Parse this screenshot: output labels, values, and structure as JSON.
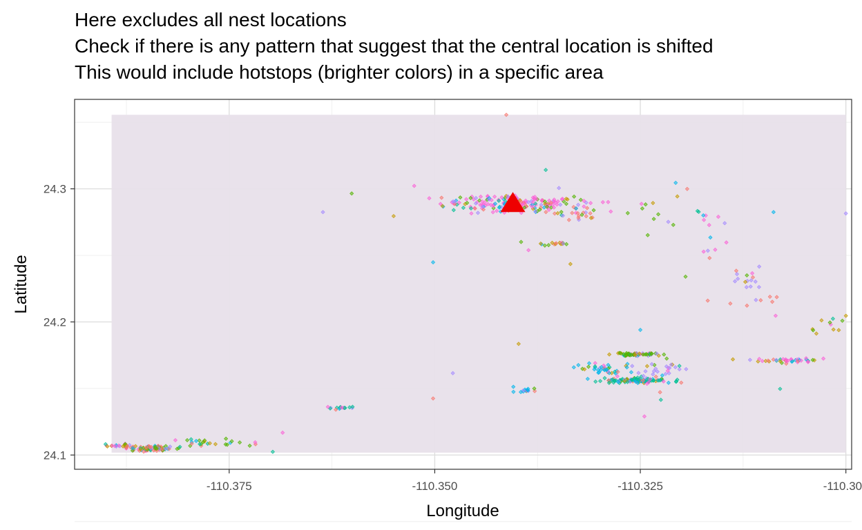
{
  "chart_data": {
    "type": "scatter",
    "title_lines": [
      "Here excludes all nest locations",
      "Check if there is any pattern that suggest that the central location is shifted",
      "This would include hotstops (brighter colors) in a specific area"
    ],
    "xlabel": "Longitude",
    "ylabel": "Latitude",
    "xlim": [
      -110.3938,
      -110.2993
    ],
    "ylim": [
      24.0893,
      24.3672
    ],
    "x_ticks": [
      -110.375,
      -110.35,
      -110.325,
      -110.3
    ],
    "x_tick_labels": [
      "-110.375",
      "-110.350",
      "-110.325",
      "-110.300"
    ],
    "y_ticks": [
      24.1,
      24.2,
      24.3
    ],
    "y_tick_labels": [
      "24.1",
      "24.2",
      "24.3"
    ],
    "grid": true,
    "density_background": {
      "xmin": -110.3893,
      "xmax": -110.3,
      "ymin": 24.1018,
      "ymax": 24.3556,
      "color": "#e8e0ea"
    },
    "central_location": {
      "x": -110.3405,
      "y": 24.2898,
      "marker": "triangle",
      "color": "#ee0000"
    },
    "colors": [
      "#f8766d",
      "#c49a00",
      "#53b400",
      "#00c094",
      "#00b6eb",
      "#a58aff",
      "#fb61d7"
    ],
    "clusters": [
      {
        "x": -110.3403,
        "y": 24.2893,
        "sx": 0.0043,
        "sy": 0.0032,
        "n": 200
      },
      {
        "x": -110.3327,
        "y": 24.2805,
        "sx": 0.0013,
        "sy": 0.0023,
        "n": 20
      },
      {
        "x": -110.3351,
        "y": 24.2583,
        "sx": 0.0011,
        "sy": 0.0005,
        "n": 15
      },
      {
        "x": -110.3255,
        "y": 24.1756,
        "sx": 0.0016,
        "sy": 0.0006,
        "n": 60
      },
      {
        "x": -110.3254,
        "y": 24.1558,
        "sx": 0.002,
        "sy": 0.001,
        "n": 120
      },
      {
        "x": -110.3295,
        "y": 24.1646,
        "sx": 0.0018,
        "sy": 0.0026,
        "n": 40
      },
      {
        "x": -110.3218,
        "y": 24.165,
        "sx": 0.002,
        "sy": 0.0035,
        "n": 25
      },
      {
        "x": -110.3072,
        "y": 24.171,
        "sx": 0.0025,
        "sy": 0.0008,
        "n": 40
      },
      {
        "x": -110.3844,
        "y": 24.105,
        "sx": 0.0016,
        "sy": 0.0011,
        "n": 90
      },
      {
        "x": -110.3885,
        "y": 24.107,
        "sx": 0.001,
        "sy": 0.0007,
        "n": 20
      },
      {
        "x": -110.3775,
        "y": 24.1095,
        "sx": 0.0025,
        "sy": 0.0015,
        "n": 25
      },
      {
        "x": -110.3615,
        "y": 24.1352,
        "sx": 0.0009,
        "sy": 0.0005,
        "n": 15
      },
      {
        "x": -110.3389,
        "y": 24.1488,
        "sx": 0.001,
        "sy": 0.0007,
        "n": 15
      },
      {
        "x": -110.3125,
        "y": 24.233,
        "sx": 0.0012,
        "sy": 0.004,
        "n": 15
      },
      {
        "x": -110.317,
        "y": 24.275,
        "sx": 0.0015,
        "sy": 0.009,
        "n": 12
      },
      {
        "x": -110.31,
        "y": 24.215,
        "sx": 0.002,
        "sy": 0.006,
        "n": 8
      },
      {
        "x": -110.302,
        "y": 24.195,
        "sx": 0.0012,
        "sy": 0.008,
        "n": 10
      },
      {
        "x": -110.324,
        "y": 24.28,
        "sx": 0.0015,
        "sy": 0.005,
        "n": 8
      }
    ],
    "sparse_points": [
      [
        -110.3413,
        24.3556
      ],
      [
        -110.3365,
        24.3142
      ],
      [
        -110.3525,
        24.3022
      ],
      [
        -110.3601,
        24.2965
      ],
      [
        -110.3636,
        24.2825
      ],
      [
        -110.355,
        24.2795
      ],
      [
        -110.3502,
        24.2448
      ],
      [
        -110.3502,
        24.1425
      ],
      [
        -110.3697,
        24.1024
      ],
      [
        -110.3685,
        24.1168
      ],
      [
        -110.3725,
        24.107
      ],
      [
        -110.3478,
        24.1615
      ],
      [
        -110.3398,
        24.1835
      ],
      [
        -110.325,
        24.194
      ],
      [
        -110.3226,
        24.1472
      ],
      [
        -110.3225,
        24.1415
      ],
      [
        -110.3245,
        24.129
      ],
      [
        -110.3241,
        24.2652
      ],
      [
        -110.3216,
        24.2752
      ],
      [
        -110.3205,
        24.2943
      ],
      [
        -110.3207,
        24.3045
      ],
      [
        -110.3193,
        24.2999
      ],
      [
        -110.3179,
        24.2827
      ],
      [
        -110.3173,
        24.2528
      ],
      [
        -110.3195,
        24.234
      ],
      [
        -110.3,
        24.2815
      ],
      [
        -110.3,
        24.2046
      ],
      [
        -110.3088,
        24.2825
      ],
      [
        -110.3168,
        24.216
      ],
      [
        -110.308,
        24.1497
      ],
      [
        -110.3386,
        24.2539
      ],
      [
        -110.3395,
        24.2601
      ],
      [
        -110.3349,
        24.3006
      ],
      [
        -110.3335,
        24.2435
      ]
    ]
  }
}
